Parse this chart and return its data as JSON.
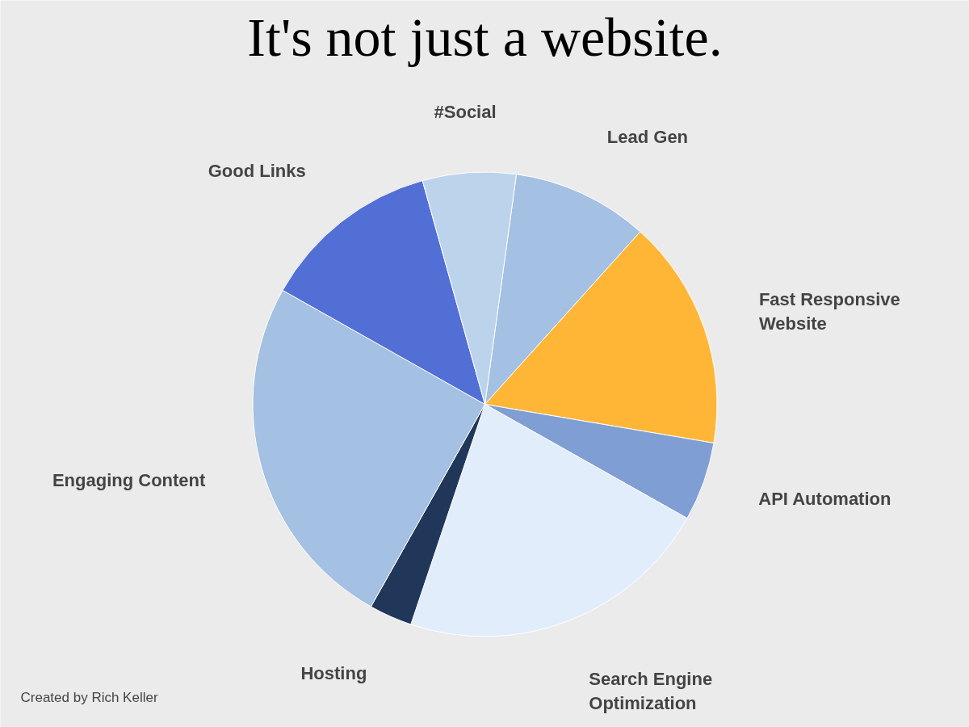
{
  "chart_data": {
    "type": "pie",
    "title": "It's not just a website.",
    "categories": [
      "Lead Gen",
      "Fast Responsive Website",
      "API Automation",
      "Search Engine Optimization",
      "Hosting",
      "Engaging Content",
      "Good Links",
      "#Social"
    ],
    "values": [
      9.5,
      16,
      5.5,
      22,
      3,
      25,
      12.5,
      6.5
    ],
    "colors": [
      "#a4c0e2",
      "#ffb636",
      "#7f9fd4",
      "#e2edfb",
      "#21375a",
      "#a4c0e2",
      "#526fd6",
      "#bcd3ec"
    ],
    "annotations": [
      "Created by Rich Keller"
    ]
  }
}
